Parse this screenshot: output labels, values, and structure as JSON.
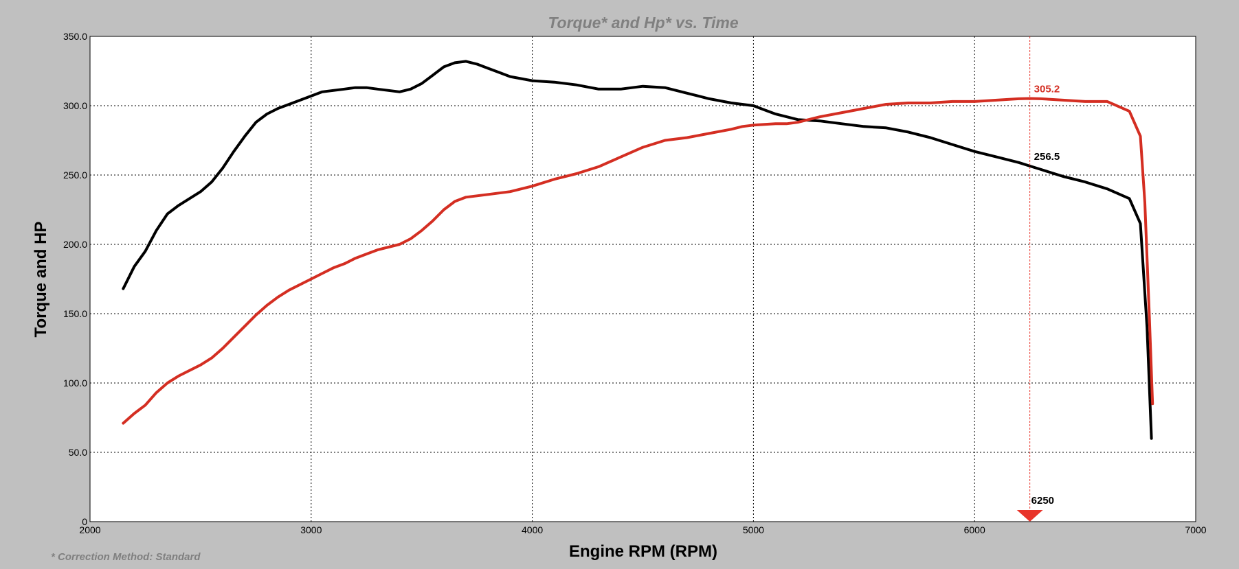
{
  "chart_data": {
    "type": "line",
    "title": "Torque* and Hp* vs. Time",
    "xlabel": "Engine RPM (RPM)",
    "ylabel": "Torque and HP",
    "footnote": "* Correction Method: Standard",
    "xlim": [
      2000,
      7000
    ],
    "ylim": [
      0,
      350
    ],
    "x_ticks": [
      {
        "value": 2000,
        "label": "2000"
      },
      {
        "value": 3000,
        "label": "3000"
      },
      {
        "value": 4000,
        "label": "4000"
      },
      {
        "value": 5000,
        "label": "5000"
      },
      {
        "value": 6000,
        "label": "6000"
      },
      {
        "value": 7000,
        "label": "7000"
      }
    ],
    "y_ticks": [
      {
        "value": 0,
        "label": "0"
      },
      {
        "value": 50,
        "label": "50.0"
      },
      {
        "value": 100,
        "label": "100.0"
      },
      {
        "value": 150,
        "label": "150.0"
      },
      {
        "value": 200,
        "label": "200.0"
      },
      {
        "value": 250,
        "label": "250.0"
      },
      {
        "value": 300,
        "label": "300.0"
      },
      {
        "value": 350,
        "label": "350.0"
      }
    ],
    "grid": true,
    "cursor": {
      "x": 6250,
      "label": "6250",
      "color": "#e8342a"
    },
    "series": [
      {
        "color": "#000000",
        "cursor_value": 256.5,
        "cursor_label": "256.5",
        "points": [
          [
            2150,
            168
          ],
          [
            2200,
            184
          ],
          [
            2250,
            195
          ],
          [
            2300,
            210
          ],
          [
            2350,
            222
          ],
          [
            2400,
            228
          ],
          [
            2500,
            238
          ],
          [
            2550,
            245
          ],
          [
            2600,
            255
          ],
          [
            2650,
            267
          ],
          [
            2700,
            278
          ],
          [
            2750,
            288
          ],
          [
            2800,
            294
          ],
          [
            2850,
            298
          ],
          [
            2900,
            301
          ],
          [
            3000,
            307
          ],
          [
            3050,
            310
          ],
          [
            3100,
            311
          ],
          [
            3150,
            312
          ],
          [
            3200,
            313
          ],
          [
            3250,
            313
          ],
          [
            3300,
            312
          ],
          [
            3400,
            310
          ],
          [
            3450,
            312
          ],
          [
            3500,
            316
          ],
          [
            3550,
            322
          ],
          [
            3600,
            328
          ],
          [
            3650,
            331
          ],
          [
            3700,
            332
          ],
          [
            3750,
            330
          ],
          [
            3800,
            327
          ],
          [
            3850,
            324
          ],
          [
            3900,
            321
          ],
          [
            4000,
            318
          ],
          [
            4100,
            317
          ],
          [
            4200,
            315
          ],
          [
            4300,
            312
          ],
          [
            4400,
            312
          ],
          [
            4500,
            314
          ],
          [
            4600,
            313
          ],
          [
            4700,
            309
          ],
          [
            4800,
            305
          ],
          [
            4900,
            302
          ],
          [
            5000,
            300
          ],
          [
            5050,
            297
          ],
          [
            5100,
            294
          ],
          [
            5200,
            290
          ],
          [
            5300,
            289
          ],
          [
            5400,
            287
          ],
          [
            5500,
            285
          ],
          [
            5600,
            284
          ],
          [
            5700,
            281
          ],
          [
            5800,
            277
          ],
          [
            5900,
            272
          ],
          [
            6000,
            267
          ],
          [
            6100,
            263
          ],
          [
            6200,
            259
          ],
          [
            6250,
            256.5
          ],
          [
            6300,
            254
          ],
          [
            6400,
            249
          ],
          [
            6500,
            245
          ],
          [
            6600,
            240
          ],
          [
            6700,
            233
          ],
          [
            6750,
            215
          ],
          [
            6780,
            140
          ],
          [
            6800,
            60
          ]
        ]
      },
      {
        "color": "#d42e22",
        "cursor_value": 305.2,
        "cursor_label": "305.2",
        "points": [
          [
            2150,
            71
          ],
          [
            2200,
            78
          ],
          [
            2250,
            84
          ],
          [
            2300,
            93
          ],
          [
            2350,
            100
          ],
          [
            2400,
            105
          ],
          [
            2500,
            113
          ],
          [
            2550,
            118
          ],
          [
            2600,
            125
          ],
          [
            2650,
            133
          ],
          [
            2700,
            141
          ],
          [
            2750,
            149
          ],
          [
            2800,
            156
          ],
          [
            2850,
            162
          ],
          [
            2900,
            167
          ],
          [
            3000,
            175
          ],
          [
            3050,
            179
          ],
          [
            3100,
            183
          ],
          [
            3150,
            186
          ],
          [
            3200,
            190
          ],
          [
            3250,
            193
          ],
          [
            3300,
            196
          ],
          [
            3400,
            200
          ],
          [
            3450,
            204
          ],
          [
            3500,
            210
          ],
          [
            3550,
            217
          ],
          [
            3600,
            225
          ],
          [
            3650,
            231
          ],
          [
            3700,
            234
          ],
          [
            3800,
            236
          ],
          [
            3900,
            238
          ],
          [
            4000,
            242
          ],
          [
            4100,
            247
          ],
          [
            4200,
            251
          ],
          [
            4300,
            256
          ],
          [
            4400,
            263
          ],
          [
            4500,
            270
          ],
          [
            4600,
            275
          ],
          [
            4700,
            277
          ],
          [
            4800,
            280
          ],
          [
            4900,
            283
          ],
          [
            4950,
            285
          ],
          [
            5000,
            286
          ],
          [
            5100,
            287
          ],
          [
            5150,
            287
          ],
          [
            5200,
            288
          ],
          [
            5300,
            292
          ],
          [
            5400,
            295
          ],
          [
            5500,
            298
          ],
          [
            5600,
            301
          ],
          [
            5700,
            302
          ],
          [
            5800,
            302
          ],
          [
            5900,
            303
          ],
          [
            6000,
            303
          ],
          [
            6100,
            304
          ],
          [
            6200,
            305
          ],
          [
            6250,
            305.2
          ],
          [
            6300,
            305
          ],
          [
            6400,
            304
          ],
          [
            6500,
            303
          ],
          [
            6600,
            303
          ],
          [
            6700,
            296
          ],
          [
            6750,
            278
          ],
          [
            6770,
            230
          ],
          [
            6790,
            150
          ],
          [
            6805,
            85
          ]
        ]
      }
    ]
  }
}
